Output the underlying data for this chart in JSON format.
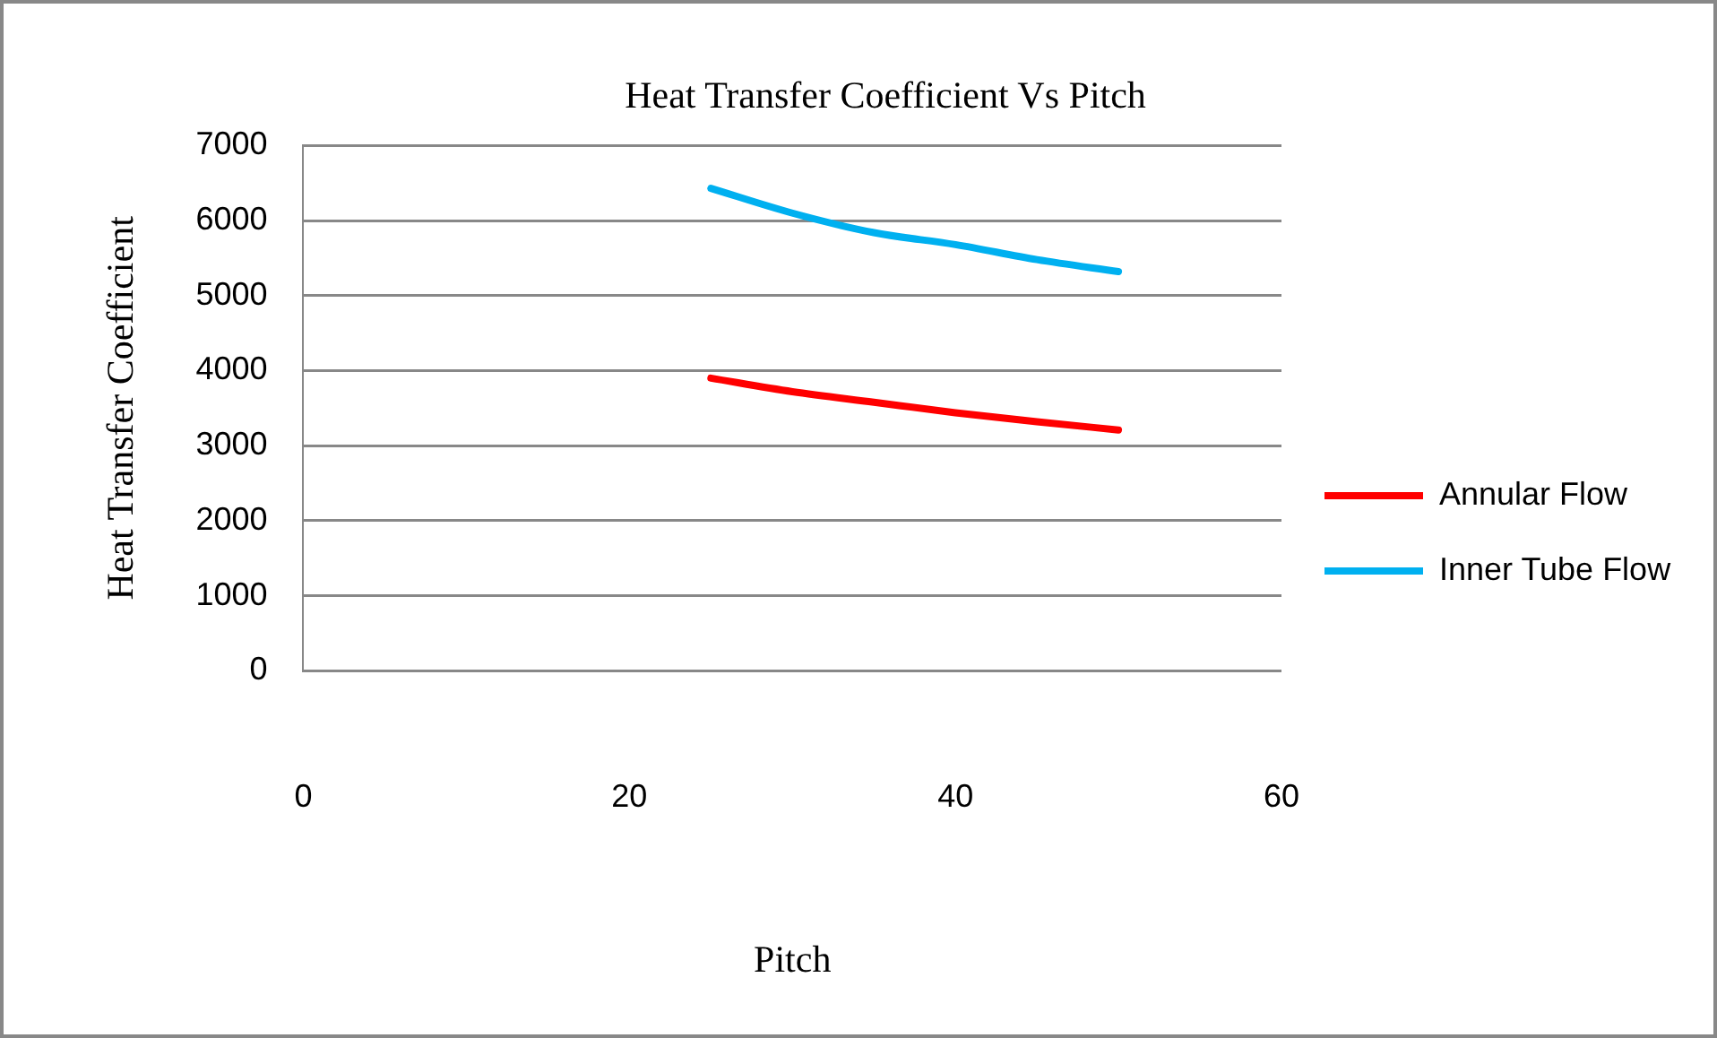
{
  "chart_data": {
    "type": "line",
    "title": "Heat Transfer Coefficient Vs Pitch",
    "xlabel": "Pitch",
    "ylabel": "Heat Transfer Coefficient",
    "x": [
      25,
      30,
      35,
      40,
      45,
      50
    ],
    "series": [
      {
        "name": "Annular Flow",
        "color": "#ff0000",
        "values": [
          3900,
          3720,
          3580,
          3440,
          3320,
          3210
        ]
      },
      {
        "name": "Inner Tube Flow",
        "color": "#00b0f0",
        "values": [
          6430,
          6100,
          5840,
          5680,
          5480,
          5320
        ]
      }
    ],
    "xlim": [
      0,
      60
    ],
    "xticks": [
      0,
      20,
      40,
      60
    ],
    "ylim": [
      0,
      7000
    ],
    "yticks": [
      0,
      1000,
      2000,
      3000,
      4000,
      5000,
      6000,
      7000
    ],
    "grid": "y",
    "legend": "right",
    "marker": "none",
    "line_style": "solid"
  }
}
